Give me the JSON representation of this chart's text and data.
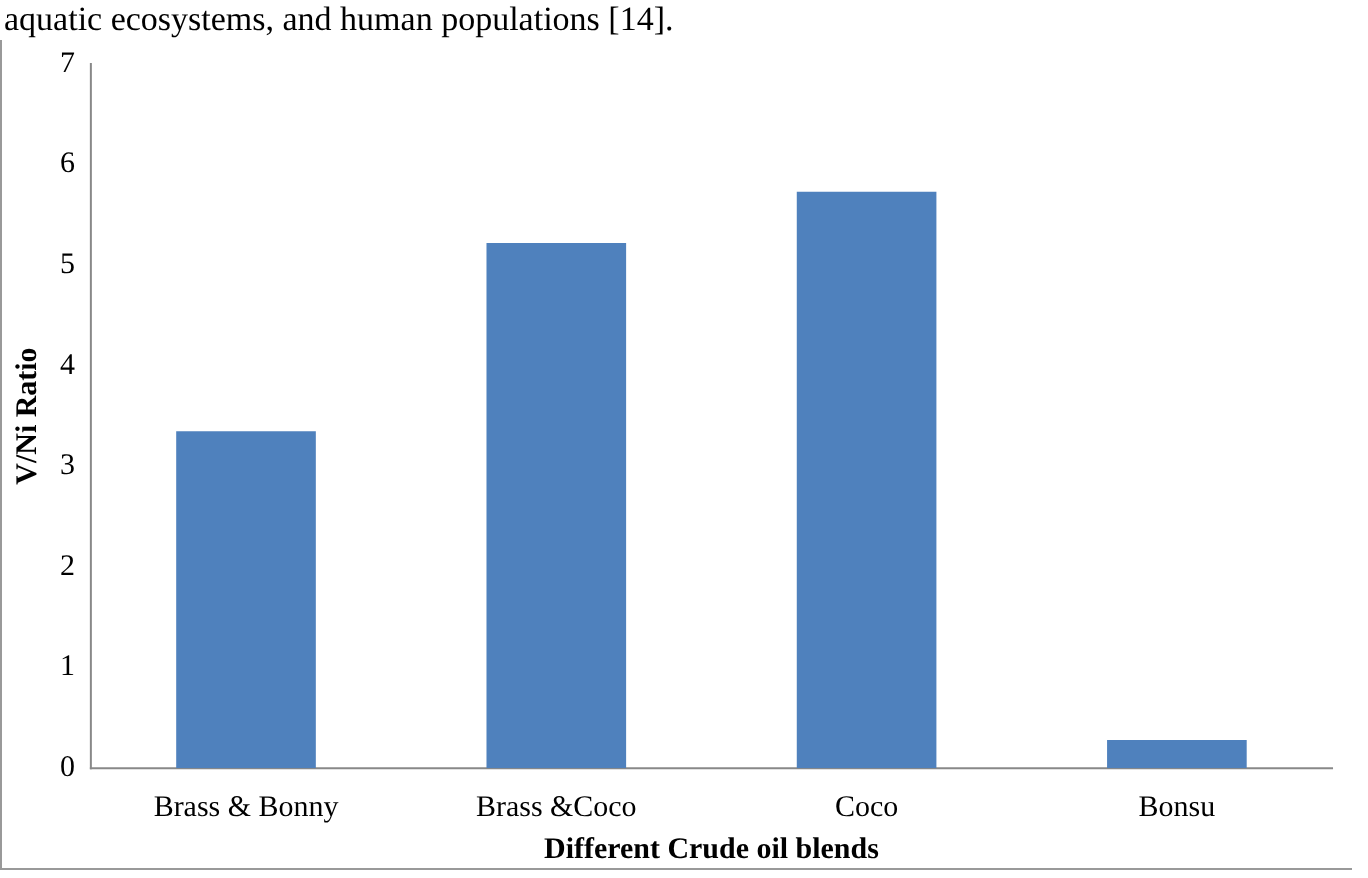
{
  "chart_data": {
    "type": "bar",
    "annotations": [
      "aquatic ecosystems, and human populations [14]."
    ],
    "xlabel": "Different Crude oil blends",
    "ylabel": "V/Ni Ratio",
    "categories": [
      "Brass & Bonny",
      "Brass &Coco",
      "Coco",
      "Bonsu"
    ],
    "values": [
      3.35,
      5.22,
      5.73,
      0.28
    ],
    "color": "#4f81bd",
    "ylim": [
      0,
      7
    ],
    "yticks": [
      0,
      1,
      2,
      3,
      4,
      5,
      6,
      7
    ],
    "grid": false,
    "legend": false
  }
}
